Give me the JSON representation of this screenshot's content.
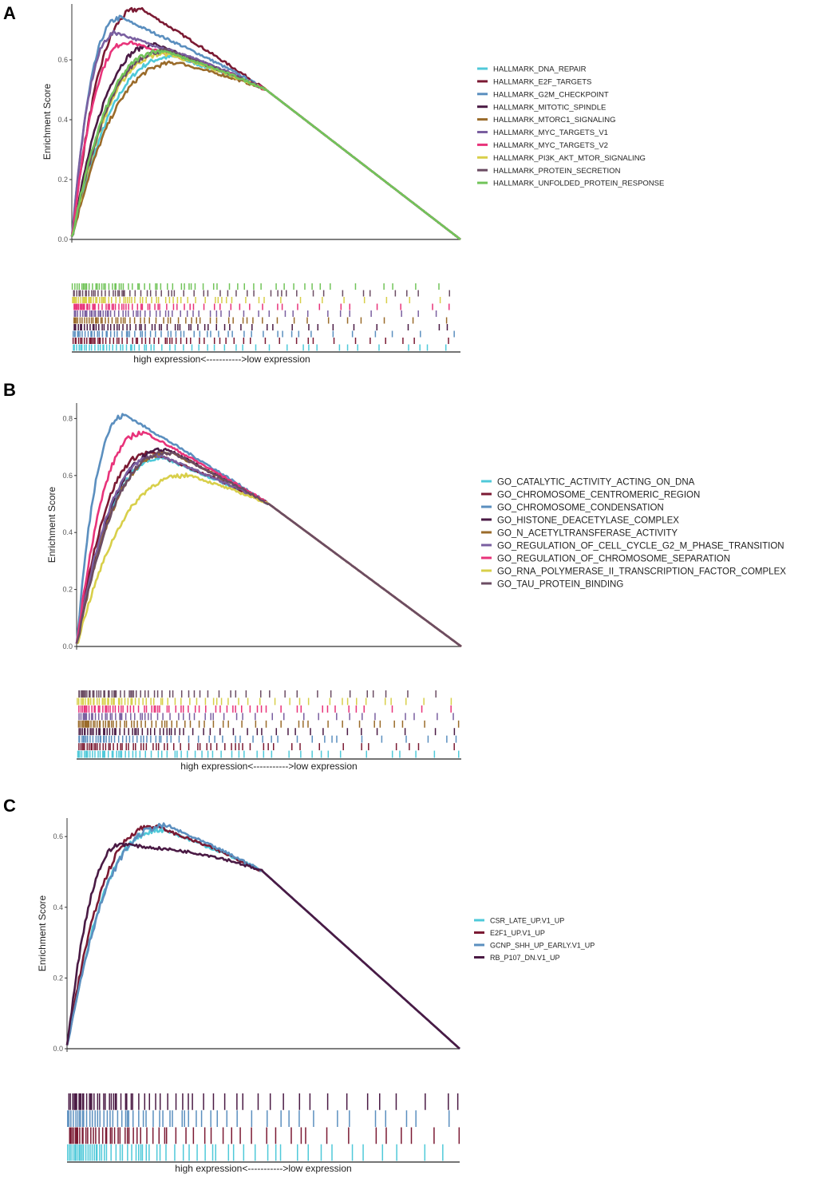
{
  "chart_data": [
    {
      "type": "line",
      "panel_label": "A",
      "ylabel": "Enrichment Score",
      "xlabel": "high expression<----------->low expression",
      "ylim": [
        0,
        0.78
      ],
      "yticks": [
        "0.0",
        "0.2",
        "0.4",
        "0.6"
      ],
      "grid": false,
      "legend_placement": "right",
      "series": [
        {
          "name": "HALLMARK_DNA_REPAIR",
          "color": "#4fc9d9",
          "peak_es": 0.61,
          "peak_rank_fraction": 0.27
        },
        {
          "name": "HALLMARK_E2F_TARGETS",
          "color": "#7b1a33",
          "peak_es": 0.77,
          "peak_rank_fraction": 0.18
        },
        {
          "name": "HALLMARK_G2M_CHECKPOINT",
          "color": "#5b8fbf",
          "peak_es": 0.74,
          "peak_rank_fraction": 0.13
        },
        {
          "name": "HALLMARK_MITOTIC_SPINDLE",
          "color": "#4a1a44",
          "peak_es": 0.65,
          "peak_rank_fraction": 0.22
        },
        {
          "name": "HALLMARK_MTORC1_SIGNALING",
          "color": "#9a6b2a",
          "peak_es": 0.59,
          "peak_rank_fraction": 0.28
        },
        {
          "name": "HALLMARK_MYC_TARGETS_V1",
          "color": "#7a5fa0",
          "peak_es": 0.69,
          "peak_rank_fraction": 0.12
        },
        {
          "name": "HALLMARK_MYC_TARGETS_V2",
          "color": "#e8337a",
          "peak_es": 0.66,
          "peak_rank_fraction": 0.15
        },
        {
          "name": "HALLMARK_PI3K_AKT_MTOR_SIGNALING",
          "color": "#d8cf4a",
          "peak_es": 0.62,
          "peak_rank_fraction": 0.25
        },
        {
          "name": "HALLMARK_PROTEIN_SECRETION",
          "color": "#6b4c63",
          "peak_es": 0.63,
          "peak_rank_fraction": 0.25
        },
        {
          "name": "HALLMARK_UNFOLDED_PROTEIN_RESPONSE",
          "color": "#72c45a",
          "peak_es": 0.63,
          "peak_rank_fraction": 0.24
        }
      ]
    },
    {
      "type": "line",
      "panel_label": "B",
      "ylabel": "Enrichment Score",
      "xlabel": "high expression<----------->low expression",
      "ylim": [
        0,
        0.85
      ],
      "yticks": [
        "0.0",
        "0.2",
        "0.4",
        "0.6",
        "0.8"
      ],
      "grid": false,
      "legend_placement": "right",
      "series": [
        {
          "name": "GO_CATALYTIC_ACTIVITY_ACTING_ON_DNA",
          "color": "#4fc9d9",
          "peak_es": 0.66,
          "peak_rank_fraction": 0.23
        },
        {
          "name": "GO_CHROMOSOME_CENTROMERIC_REGION",
          "color": "#7b1a33",
          "peak_es": 0.68,
          "peak_rank_fraction": 0.2
        },
        {
          "name": "GO_CHROMOSOME_CONDENSATION",
          "color": "#5b8fbf",
          "peak_es": 0.81,
          "peak_rank_fraction": 0.13
        },
        {
          "name": "GO_HISTONE_DEACETYLASE_COMPLEX",
          "color": "#4a1a44",
          "peak_es": 0.69,
          "peak_rank_fraction": 0.24
        },
        {
          "name": "GO_N_ACETYLTRANSFERASE_ACTIVITY",
          "color": "#9a6b2a",
          "peak_es": 0.68,
          "peak_rank_fraction": 0.25
        },
        {
          "name": "GO_REGULATION_OF_CELL_CYCLE_G2_M_PHASE_TRANSITION",
          "color": "#7a5fa0",
          "peak_es": 0.67,
          "peak_rank_fraction": 0.22
        },
        {
          "name": "GO_REGULATION_OF_CHROMOSOME_SEPARATION",
          "color": "#e8337a",
          "peak_es": 0.75,
          "peak_rank_fraction": 0.18
        },
        {
          "name": "GO_RNA_POLYMERASE_II_TRANSCRIPTION_FACTOR_COMPLEX",
          "color": "#d8cf4a",
          "peak_es": 0.6,
          "peak_rank_fraction": 0.3
        },
        {
          "name": "GO_TAU_PROTEIN_BINDING",
          "color": "#6b4c63",
          "peak_es": 0.68,
          "peak_rank_fraction": 0.25
        }
      ]
    },
    {
      "type": "line",
      "panel_label": "C",
      "ylabel": "Enrichment Score",
      "xlabel": "high expression<----------->low expression",
      "ylim": [
        0,
        0.65
      ],
      "yticks": [
        "0.0",
        "0.2",
        "0.4",
        "0.6"
      ],
      "grid": false,
      "legend_placement": "right",
      "series": [
        {
          "name": "CSR_LATE_UP.V1_UP",
          "color": "#4fc9d9",
          "peak_es": 0.62,
          "peak_rank_fraction": 0.25
        },
        {
          "name": "E2F1_UP.V1_UP",
          "color": "#7b1a33",
          "peak_es": 0.63,
          "peak_rank_fraction": 0.23
        },
        {
          "name": "GCNP_SHH_UP_EARLY.V1_UP",
          "color": "#5b8fbf",
          "peak_es": 0.63,
          "peak_rank_fraction": 0.26
        },
        {
          "name": "RB_P107_DN.V1_UP",
          "color": "#4a1a44",
          "peak_es": 0.58,
          "peak_rank_fraction": 0.15
        }
      ]
    }
  ]
}
